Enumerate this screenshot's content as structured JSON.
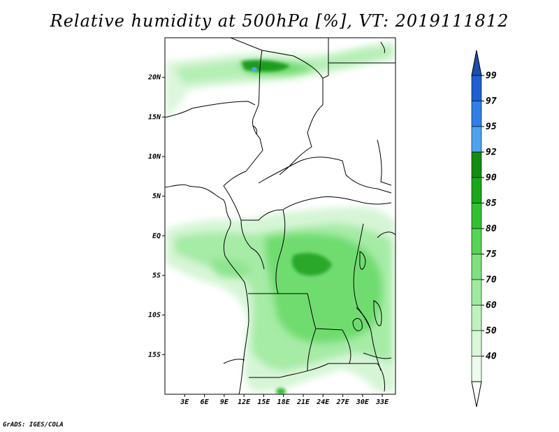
{
  "title": "Relative humidity at 500hPa [%], VT: 2019111812",
  "footer": "GrADS: IGES/COLA",
  "map": {
    "lon_range": [
      0,
      35
    ],
    "lat_range": [
      -20,
      25
    ],
    "lat_ticks": [
      {
        "value": 20,
        "label": "20N"
      },
      {
        "value": 15,
        "label": "15N"
      },
      {
        "value": 10,
        "label": "10N"
      },
      {
        "value": 5,
        "label": "5N"
      },
      {
        "value": 0,
        "label": "EQ"
      },
      {
        "value": -5,
        "label": "5S"
      },
      {
        "value": -10,
        "label": "10S"
      },
      {
        "value": -15,
        "label": "15S"
      }
    ],
    "lon_ticks": [
      {
        "value": 3,
        "label": "3E"
      },
      {
        "value": 6,
        "label": "6E"
      },
      {
        "value": 9,
        "label": "9E"
      },
      {
        "value": 12,
        "label": "12E"
      },
      {
        "value": 15,
        "label": "15E"
      },
      {
        "value": 18,
        "label": "18E"
      },
      {
        "value": 21,
        "label": "21E"
      },
      {
        "value": 24,
        "label": "24E"
      },
      {
        "value": 27,
        "label": "27E"
      },
      {
        "value": 30,
        "label": "30E"
      },
      {
        "value": 33,
        "label": "33E"
      }
    ]
  },
  "colorbar": {
    "levels": [
      {
        "label": "99",
        "color": "#1f5fd0"
      },
      {
        "label": "97",
        "color": "#2f7fe6"
      },
      {
        "label": "95",
        "color": "#4fa2ee"
      },
      {
        "label": "92",
        "color": "#128c12"
      },
      {
        "label": "90",
        "color": "#1ca61c"
      },
      {
        "label": "85",
        "color": "#32c032"
      },
      {
        "label": "80",
        "color": "#55d455"
      },
      {
        "label": "75",
        "color": "#7fe07f"
      },
      {
        "label": "70",
        "color": "#a0eaa0"
      },
      {
        "label": "60",
        "color": "#bff1bf"
      },
      {
        "label": "50",
        "color": "#d8f7d8"
      },
      {
        "label": "40",
        "color": "#ebfbeb"
      }
    ],
    "top_color": "#1a4fb0",
    "bottom_color": "#ffffff"
  }
}
